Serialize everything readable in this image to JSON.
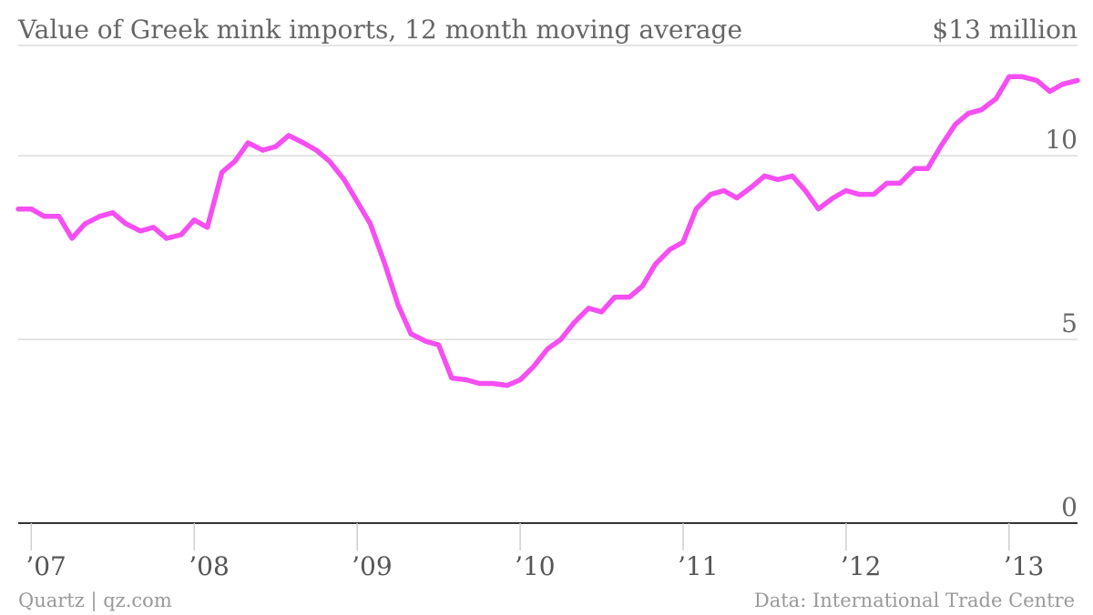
{
  "chart_data": {
    "type": "line",
    "title": "Value of Greek mink imports, 12 month moving average",
    "y_unit_label": "$13 million",
    "ylim": [
      0,
      13
    ],
    "xlim": [
      2006.92,
      2013.42
    ],
    "y_ticks": [
      {
        "value": 0,
        "label": "0"
      },
      {
        "value": 5,
        "label": "5"
      },
      {
        "value": 10,
        "label": "10"
      }
    ],
    "x_ticks": [
      {
        "value": 2007,
        "label": "’07"
      },
      {
        "value": 2008,
        "label": "’08"
      },
      {
        "value": 2009,
        "label": "’09"
      },
      {
        "value": 2010,
        "label": "’10"
      },
      {
        "value": 2011,
        "label": "’11"
      },
      {
        "value": 2012,
        "label": "’12"
      },
      {
        "value": 2013,
        "label": "’13"
      }
    ],
    "grid": true,
    "color": "#F54EF1",
    "series": [
      {
        "name": "",
        "x": [
          2006.92,
          2007.0,
          2007.08,
          2007.17,
          2007.25,
          2007.33,
          2007.42,
          2007.5,
          2007.58,
          2007.67,
          2007.75,
          2007.83,
          2007.92,
          2008.0,
          2008.08,
          2008.17,
          2008.25,
          2008.33,
          2008.42,
          2008.5,
          2008.58,
          2008.67,
          2008.75,
          2008.83,
          2008.92,
          2009.0,
          2009.08,
          2009.17,
          2009.25,
          2009.33,
          2009.42,
          2009.5,
          2009.58,
          2009.67,
          2009.75,
          2009.83,
          2009.92,
          2010.0,
          2010.08,
          2010.17,
          2010.25,
          2010.33,
          2010.42,
          2010.5,
          2010.58,
          2010.67,
          2010.75,
          2010.83,
          2010.92,
          2011.0,
          2011.08,
          2011.17,
          2011.25,
          2011.33,
          2011.42,
          2011.5,
          2011.58,
          2011.67,
          2011.75,
          2011.83,
          2011.92,
          2012.0,
          2012.08,
          2012.17,
          2012.25,
          2012.33,
          2012.42,
          2012.5,
          2012.58,
          2012.67,
          2012.75,
          2012.83,
          2012.92,
          2013.0,
          2013.08,
          2013.17,
          2013.25,
          2013.33,
          2013.42
        ],
        "values": [
          8.55,
          8.55,
          8.35,
          8.35,
          7.75,
          8.15,
          8.35,
          8.45,
          8.15,
          7.95,
          8.05,
          7.75,
          7.85,
          8.25,
          8.05,
          9.55,
          9.85,
          10.35,
          10.15,
          10.25,
          10.55,
          10.35,
          10.15,
          9.85,
          9.35,
          8.75,
          8.15,
          7.05,
          5.95,
          5.15,
          4.95,
          4.85,
          3.95,
          3.9,
          3.8,
          3.8,
          3.75,
          3.9,
          4.25,
          4.75,
          5.0,
          5.45,
          5.85,
          5.75,
          6.15,
          6.15,
          6.45,
          7.05,
          7.45,
          7.65,
          8.55,
          8.95,
          9.05,
          8.85,
          9.15,
          9.45,
          9.35,
          9.45,
          9.05,
          8.55,
          8.85,
          9.05,
          8.95,
          8.95,
          9.25,
          9.25,
          9.65,
          9.65,
          10.25,
          10.85,
          11.15,
          11.25,
          11.55,
          12.15,
          12.15,
          12.05,
          11.75,
          11.95,
          12.05
        ]
      }
    ],
    "footer_left": "Quartz | qz.com",
    "footer_right": "Data: International Trade Centre"
  }
}
